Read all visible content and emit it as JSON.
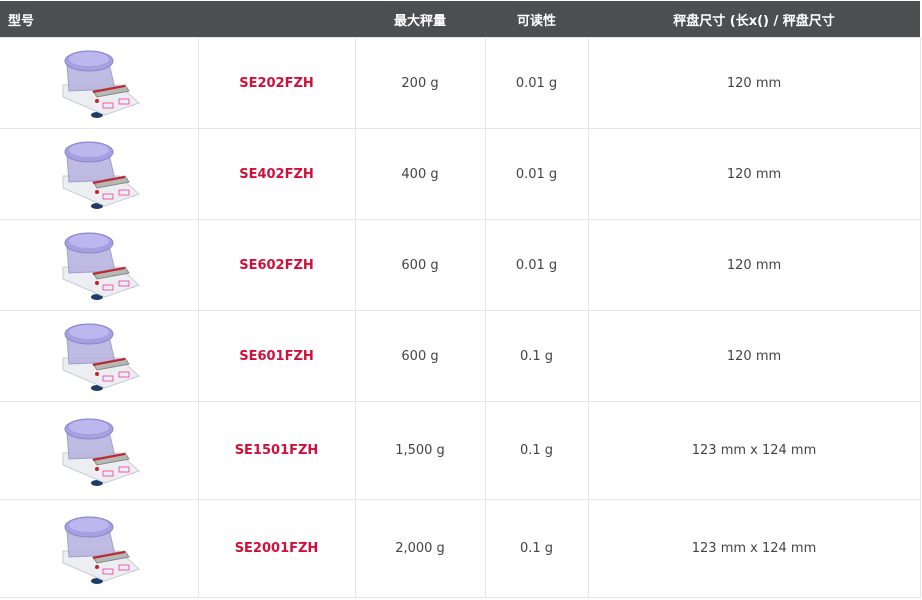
{
  "header": {
    "model": "型号",
    "max_capacity": "最大秤量",
    "readability": "可读性",
    "pan_size": "秤盘尺寸 (长x() / 秤盘尺寸"
  },
  "colors": {
    "header_bg": "#4b4f52",
    "model_text": "#d0103a"
  },
  "rows": [
    {
      "model": "SE202FZH",
      "capacity": "200 g",
      "readability": "0.01 g",
      "pan": "120 mm",
      "image": "precision-balance-with-draft-shield"
    },
    {
      "model": "SE402FZH",
      "capacity": "400 g",
      "readability": "0.01 g",
      "pan": "120 mm",
      "image": "precision-balance-with-draft-shield"
    },
    {
      "model": "SE602FZH",
      "capacity": "600 g",
      "readability": "0.01 g",
      "pan": "120 mm",
      "image": "precision-balance-with-draft-shield"
    },
    {
      "model": "SE601FZH",
      "capacity": "600 g",
      "readability": "0.1 g",
      "pan": "120 mm",
      "image": "precision-balance-with-draft-shield"
    },
    {
      "model": "SE1501FZH",
      "capacity": "1,500 g",
      "readability": "0.1 g",
      "pan": "123 mm x 124 mm",
      "image": "precision-balance-with-draft-shield"
    },
    {
      "model": "SE2001FZH",
      "capacity": "2,000 g",
      "readability": "0.1 g",
      "pan": "123 mm x 124 mm",
      "image": "precision-balance-with-draft-shield"
    }
  ]
}
